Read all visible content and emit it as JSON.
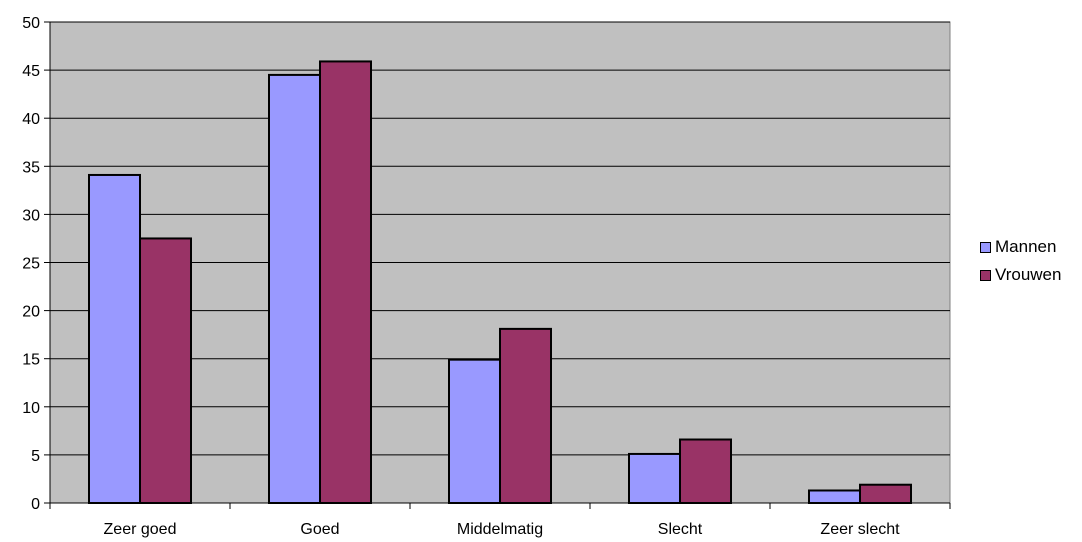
{
  "chart_data": {
    "type": "bar",
    "categories": [
      "Zeer goed",
      "Goed",
      "Middelmatig",
      "Slecht",
      "Zeer slecht"
    ],
    "series": [
      {
        "name": "Mannen",
        "values": [
          34.1,
          44.5,
          14.9,
          5.1,
          1.3
        ],
        "color": "#9999ff"
      },
      {
        "name": "Vrouwen",
        "values": [
          27.5,
          45.9,
          18.1,
          6.6,
          1.9
        ],
        "color": "#993366"
      }
    ],
    "ylim": [
      0,
      50
    ],
    "yticks": [
      0,
      5,
      10,
      15,
      20,
      25,
      30,
      35,
      40,
      45,
      50
    ],
    "grid": true,
    "plot_background": "#c0c0c0",
    "legend_position": "right"
  }
}
